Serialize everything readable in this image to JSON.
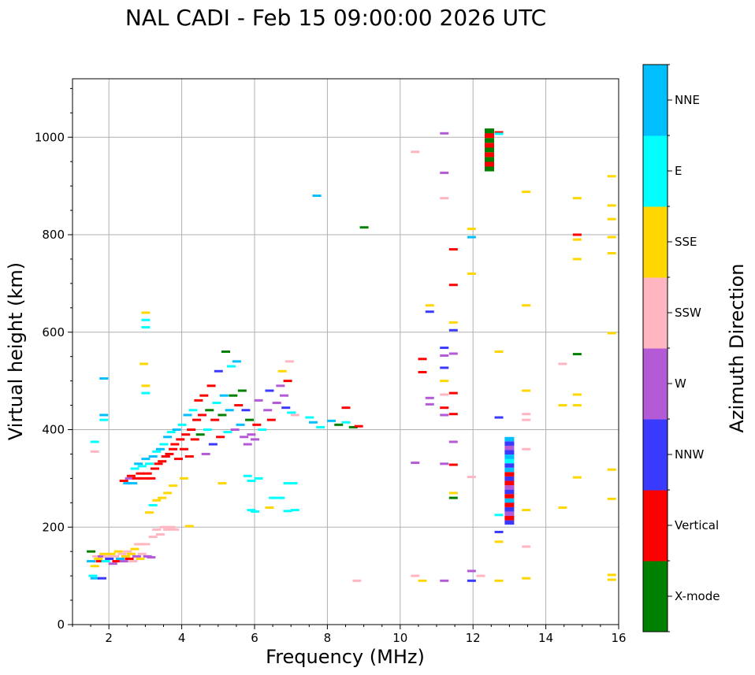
{
  "chart_data": {
    "type": "scatter",
    "title": "NAL CADI - Feb 15 09:00:00 2026 UTC",
    "xlabel": "Frequency (MHz)",
    "ylabel": "Virtual height (km)",
    "xlim": [
      1,
      16
    ],
    "ylim": [
      0,
      1120
    ],
    "xticks": [
      2,
      4,
      6,
      8,
      10,
      12,
      14,
      16
    ],
    "yticks": [
      0,
      200,
      400,
      600,
      800,
      1000
    ],
    "grid": true,
    "colorbar": {
      "label": "Azimuth Direction",
      "categories": [
        {
          "name": "X-mode",
          "color": "#008000"
        },
        {
          "name": "Vertical",
          "color": "#ff0000"
        },
        {
          "name": "NNW",
          "color": "#3a3aff"
        },
        {
          "name": "W",
          "color": "#b45ad6"
        },
        {
          "name": "SSW",
          "color": "#ffb6c1"
        },
        {
          "name": "SSE",
          "color": "#ffd700"
        },
        {
          "name": "E",
          "color": "#00ffff"
        },
        {
          "name": "NNE",
          "color": "#00bfff"
        }
      ]
    },
    "points": [
      [
        1.5,
        150,
        "X-mode"
      ],
      [
        1.5,
        130,
        "NNE"
      ],
      [
        1.55,
        100,
        "E"
      ],
      [
        1.6,
        95,
        "NNE"
      ],
      [
        1.6,
        120,
        "SSE"
      ],
      [
        1.65,
        140,
        "SSW"
      ],
      [
        1.7,
        135,
        "SSE"
      ],
      [
        1.75,
        130,
        "Vertical"
      ],
      [
        1.8,
        140,
        "W"
      ],
      [
        1.8,
        95,
        "NNW"
      ],
      [
        1.85,
        145,
        "SSE"
      ],
      [
        1.9,
        130,
        "E"
      ],
      [
        1.95,
        140,
        "SSW"
      ],
      [
        2.0,
        135,
        "NNW"
      ],
      [
        2.05,
        145,
        "SSE"
      ],
      [
        2.1,
        125,
        "W"
      ],
      [
        2.15,
        140,
        "SSW"
      ],
      [
        2.2,
        130,
        "Vertical"
      ],
      [
        2.25,
        150,
        "SSE"
      ],
      [
        2.3,
        135,
        "NNE"
      ],
      [
        2.35,
        145,
        "SSW"
      ],
      [
        2.4,
        130,
        "W"
      ],
      [
        2.45,
        140,
        "SSE"
      ],
      [
        2.5,
        150,
        "SSW"
      ],
      [
        2.55,
        135,
        "Vertical"
      ],
      [
        2.6,
        145,
        "SSE"
      ],
      [
        2.65,
        130,
        "SSW"
      ],
      [
        2.7,
        155,
        "SSE"
      ],
      [
        2.75,
        140,
        "W"
      ],
      [
        2.8,
        165,
        "SSW"
      ],
      [
        2.85,
        135,
        "SSE"
      ],
      [
        2.9,
        145,
        "SSW"
      ],
      [
        3.0,
        165,
        "SSW"
      ],
      [
        3.05,
        140,
        "W"
      ],
      [
        3.15,
        138,
        "W"
      ],
      [
        3.2,
        180,
        "SSW"
      ],
      [
        3.3,
        195,
        "SSW"
      ],
      [
        3.4,
        185,
        "SSW"
      ],
      [
        3.5,
        200,
        "SSW"
      ],
      [
        3.6,
        195,
        "SSW"
      ],
      [
        3.7,
        200,
        "SSW"
      ],
      [
        3.8,
        195,
        "SSW"
      ],
      [
        4.2,
        202,
        "SSE"
      ],
      [
        1.6,
        375,
        "E"
      ],
      [
        1.6,
        355,
        "SSW"
      ],
      [
        1.85,
        505,
        "NNE"
      ],
      [
        1.85,
        430,
        "NNE"
      ],
      [
        1.85,
        420,
        "E"
      ],
      [
        3.0,
        640,
        "SSE"
      ],
      [
        3.0,
        625,
        "E"
      ],
      [
        3.0,
        610,
        "E"
      ],
      [
        3.0,
        490,
        "SSE"
      ],
      [
        3.0,
        475,
        "E"
      ],
      [
        2.95,
        535,
        "SSE"
      ],
      [
        2.4,
        295,
        "Vertical"
      ],
      [
        2.5,
        290,
        "NNE"
      ],
      [
        2.55,
        300,
        "W"
      ],
      [
        2.6,
        305,
        "Vertical"
      ],
      [
        2.65,
        290,
        "NNE"
      ],
      [
        2.7,
        320,
        "E"
      ],
      [
        2.75,
        300,
        "Vertical"
      ],
      [
        2.8,
        330,
        "NNE"
      ],
      [
        2.85,
        310,
        "Vertical"
      ],
      [
        2.9,
        325,
        "E"
      ],
      [
        2.95,
        300,
        "Vertical"
      ],
      [
        3.0,
        340,
        "NNE"
      ],
      [
        3.05,
        310,
        "Vertical"
      ],
      [
        3.1,
        330,
        "E"
      ],
      [
        3.15,
        300,
        "Vertical"
      ],
      [
        3.2,
        345,
        "NNE"
      ],
      [
        3.25,
        320,
        "Vertical"
      ],
      [
        3.3,
        355,
        "E"
      ],
      [
        3.35,
        330,
        "Vertical"
      ],
      [
        3.4,
        360,
        "NNE"
      ],
      [
        3.45,
        335,
        "Vertical"
      ],
      [
        3.5,
        370,
        "E"
      ],
      [
        3.55,
        345,
        "Vertical"
      ],
      [
        3.6,
        385,
        "NNE"
      ],
      [
        3.65,
        350,
        "Vertical"
      ],
      [
        3.7,
        395,
        "E"
      ],
      [
        3.75,
        360,
        "Vertical"
      ],
      [
        3.8,
        370,
        "Vertical"
      ],
      [
        3.85,
        400,
        "NNE"
      ],
      [
        3.9,
        340,
        "Vertical"
      ],
      [
        3.95,
        380,
        "Vertical"
      ],
      [
        4.0,
        410,
        "E"
      ],
      [
        4.05,
        360,
        "Vertical"
      ],
      [
        4.1,
        390,
        "Vertical"
      ],
      [
        4.15,
        430,
        "NNE"
      ],
      [
        4.2,
        345,
        "Vertical"
      ],
      [
        4.25,
        400,
        "Vertical"
      ],
      [
        4.3,
        440,
        "E"
      ],
      [
        4.35,
        380,
        "Vertical"
      ],
      [
        4.4,
        420,
        "Vertical"
      ],
      [
        4.45,
        460,
        "Vertical"
      ],
      [
        4.5,
        390,
        "X-mode"
      ],
      [
        4.55,
        430,
        "Vertical"
      ],
      [
        4.6,
        470,
        "Vertical"
      ],
      [
        4.65,
        350,
        "W"
      ],
      [
        4.7,
        400,
        "E"
      ],
      [
        4.75,
        440,
        "X-mode"
      ],
      [
        4.8,
        490,
        "Vertical"
      ],
      [
        4.85,
        370,
        "NNW"
      ],
      [
        4.9,
        420,
        "Vertical"
      ],
      [
        4.95,
        455,
        "E"
      ],
      [
        5.0,
        520,
        "NNW"
      ],
      [
        5.05,
        385,
        "Vertical"
      ],
      [
        5.1,
        430,
        "X-mode"
      ],
      [
        5.15,
        470,
        "NNE"
      ],
      [
        5.2,
        560,
        "X-mode"
      ],
      [
        5.25,
        395,
        "E"
      ],
      [
        5.3,
        440,
        "NNE"
      ],
      [
        5.35,
        530,
        "E"
      ],
      [
        5.4,
        470,
        "X-mode"
      ],
      [
        5.45,
        400,
        "W"
      ],
      [
        5.5,
        540,
        "NNE"
      ],
      [
        5.55,
        450,
        "Vertical"
      ],
      [
        5.6,
        410,
        "NNE"
      ],
      [
        5.65,
        480,
        "X-mode"
      ],
      [
        5.7,
        385,
        "W"
      ],
      [
        5.75,
        440,
        "NNW"
      ],
      [
        5.8,
        370,
        "W"
      ],
      [
        5.85,
        420,
        "X-mode"
      ],
      [
        5.9,
        390,
        "W"
      ],
      [
        6.0,
        380,
        "W"
      ],
      [
        6.05,
        410,
        "Vertical"
      ],
      [
        6.1,
        460,
        "W"
      ],
      [
        6.2,
        400,
        "E"
      ],
      [
        6.35,
        440,
        "W"
      ],
      [
        6.4,
        480,
        "NNW"
      ],
      [
        6.45,
        420,
        "Vertical"
      ],
      [
        6.6,
        455,
        "W"
      ],
      [
        6.7,
        490,
        "W"
      ],
      [
        6.75,
        520,
        "SSE"
      ],
      [
        6.8,
        470,
        "W"
      ],
      [
        6.85,
        445,
        "NNW"
      ],
      [
        6.9,
        500,
        "Vertical"
      ],
      [
        6.95,
        540,
        "SSW"
      ],
      [
        7.0,
        435,
        "E"
      ],
      [
        7.1,
        430,
        "SSW"
      ],
      [
        7.5,
        425,
        "E"
      ],
      [
        7.6,
        415,
        "NNE"
      ],
      [
        7.8,
        405,
        "E"
      ],
      [
        8.1,
        418,
        "NNE"
      ],
      [
        8.3,
        410,
        "X-mode"
      ],
      [
        8.5,
        415,
        "E"
      ],
      [
        8.7,
        405,
        "X-mode"
      ],
      [
        8.85,
        407,
        "Vertical"
      ],
      [
        8.5,
        445,
        "Vertical"
      ],
      [
        9.0,
        815,
        "X-mode"
      ],
      [
        7.7,
        880,
        "NNE"
      ],
      [
        3.1,
        230,
        "SSE"
      ],
      [
        3.2,
        245,
        "E"
      ],
      [
        3.3,
        255,
        "SSE"
      ],
      [
        3.45,
        260,
        "SSE"
      ],
      [
        3.6,
        270,
        "SSE"
      ],
      [
        3.75,
        285,
        "SSE"
      ],
      [
        4.05,
        300,
        "SSE"
      ],
      [
        5.1,
        290,
        "SSE"
      ],
      [
        5.8,
        305,
        "E"
      ],
      [
        5.9,
        295,
        "E"
      ],
      [
        6.1,
        300,
        "E"
      ],
      [
        6.5,
        260,
        "E"
      ],
      [
        6.7,
        260,
        "E"
      ],
      [
        6.9,
        290,
        "E"
      ],
      [
        7.05,
        290,
        "E"
      ],
      [
        5.9,
        235,
        "E"
      ],
      [
        6.0,
        232,
        "E"
      ],
      [
        6.4,
        240,
        "SSE"
      ],
      [
        6.9,
        233,
        "E"
      ],
      [
        7.1,
        235,
        "E"
      ],
      [
        8.8,
        90,
        "SSW"
      ],
      [
        10.4,
        970,
        "SSW"
      ],
      [
        10.4,
        332,
        "W"
      ],
      [
        10.4,
        100,
        "SSW"
      ],
      [
        10.6,
        90,
        "SSE"
      ],
      [
        10.6,
        545,
        "Vertical"
      ],
      [
        10.6,
        518,
        "Vertical"
      ],
      [
        10.8,
        655,
        "SSE"
      ],
      [
        10.8,
        642,
        "NNW"
      ],
      [
        10.8,
        465,
        "W"
      ],
      [
        10.8,
        452,
        "W"
      ],
      [
        11.2,
        1008,
        "W"
      ],
      [
        11.2,
        927,
        "W"
      ],
      [
        11.2,
        875,
        "SSW"
      ],
      [
        11.2,
        568,
        "NNW"
      ],
      [
        11.2,
        552,
        "W"
      ],
      [
        11.2,
        527,
        "NNW"
      ],
      [
        11.2,
        500,
        "SSE"
      ],
      [
        11.2,
        472,
        "SSW"
      ],
      [
        11.2,
        445,
        "Vertical"
      ],
      [
        11.2,
        430,
        "W"
      ],
      [
        11.2,
        330,
        "W"
      ],
      [
        11.2,
        90,
        "W"
      ],
      [
        11.45,
        770,
        "Vertical"
      ],
      [
        11.45,
        697,
        "Vertical"
      ],
      [
        11.45,
        620,
        "SSE"
      ],
      [
        11.45,
        604,
        "NNW"
      ],
      [
        11.45,
        556,
        "W"
      ],
      [
        11.45,
        475,
        "Vertical"
      ],
      [
        11.45,
        432,
        "Vertical"
      ],
      [
        11.45,
        375,
        "W"
      ],
      [
        11.45,
        328,
        "Vertical"
      ],
      [
        11.45,
        270,
        "SSE"
      ],
      [
        11.45,
        260,
        "X-mode"
      ],
      [
        11.95,
        812,
        "SSE"
      ],
      [
        11.95,
        795,
        "NNE"
      ],
      [
        11.95,
        720,
        "SSE"
      ],
      [
        11.95,
        303,
        "SSW"
      ],
      [
        11.95,
        110,
        "W"
      ],
      [
        11.95,
        90,
        "NNW"
      ],
      [
        12.2,
        100,
        "SSW"
      ],
      [
        12.45,
        980,
        "Vertical"
      ],
      [
        12.45,
        950,
        "X-mode"
      ],
      [
        12.45,
        1010,
        "X-mode"
      ],
      [
        12.7,
        1010,
        "Vertical"
      ],
      [
        12.7,
        1007,
        "E"
      ],
      [
        12.7,
        560,
        "SSE"
      ],
      [
        12.7,
        425,
        "NNW"
      ],
      [
        12.7,
        225,
        "E"
      ],
      [
        12.7,
        190,
        "NNW"
      ],
      [
        12.7,
        170,
        "SSE"
      ],
      [
        12.7,
        90,
        "SSE"
      ],
      [
        13.0,
        370,
        "NNW"
      ],
      [
        13.0,
        340,
        "NNE"
      ],
      [
        13.0,
        310,
        "Vertical"
      ],
      [
        13.0,
        280,
        "W"
      ],
      [
        13.0,
        250,
        "Vertical"
      ],
      [
        13.0,
        220,
        "NNW"
      ],
      [
        13.45,
        888,
        "SSE"
      ],
      [
        13.45,
        655,
        "SSE"
      ],
      [
        13.45,
        480,
        "SSE"
      ],
      [
        13.45,
        432,
        "SSW"
      ],
      [
        13.45,
        420,
        "SSW"
      ],
      [
        13.45,
        360,
        "SSW"
      ],
      [
        13.45,
        235,
        "SSE"
      ],
      [
        13.45,
        160,
        "SSW"
      ],
      [
        13.45,
        95,
        "SSE"
      ],
      [
        14.45,
        535,
        "SSW"
      ],
      [
        14.45,
        450,
        "SSE"
      ],
      [
        14.45,
        240,
        "SSE"
      ],
      [
        14.85,
        875,
        "SSE"
      ],
      [
        14.85,
        800,
        "Vertical"
      ],
      [
        14.85,
        790,
        "SSE"
      ],
      [
        14.85,
        750,
        "SSE"
      ],
      [
        14.85,
        555,
        "X-mode"
      ],
      [
        14.85,
        472,
        "SSE"
      ],
      [
        14.85,
        450,
        "SSE"
      ],
      [
        14.85,
        302,
        "SSE"
      ],
      [
        15.8,
        920,
        "SSE"
      ],
      [
        15.8,
        860,
        "SSE"
      ],
      [
        15.8,
        832,
        "SSE"
      ],
      [
        15.8,
        795,
        "SSE"
      ],
      [
        15.8,
        762,
        "SSE"
      ],
      [
        15.8,
        598,
        "SSE"
      ],
      [
        15.8,
        318,
        "SSE"
      ],
      [
        15.8,
        258,
        "SSE"
      ],
      [
        15.8,
        102,
        "SSE"
      ],
      [
        15.8,
        92,
        "SSE"
      ]
    ],
    "columns": [
      {
        "x": 12.45,
        "y0": 930,
        "y1": 1018,
        "colors": [
          "X-mode",
          "Vertical",
          "X-mode",
          "Vertical",
          "X-mode",
          "Vertical",
          "X-mode",
          "Vertical",
          "X-mode"
        ]
      },
      {
        "x": 13.0,
        "y0": 205,
        "y1": 385,
        "colors": [
          "NNW",
          "Vertical",
          "W",
          "NNW",
          "Vertical",
          "NNE",
          "Vertical",
          "NNW",
          "W",
          "Vertical",
          "NNW",
          "Vertical",
          "NNE",
          "NNW",
          "E",
          "NNE",
          "NNW",
          "W",
          "NNW",
          "NNE"
        ]
      }
    ]
  }
}
